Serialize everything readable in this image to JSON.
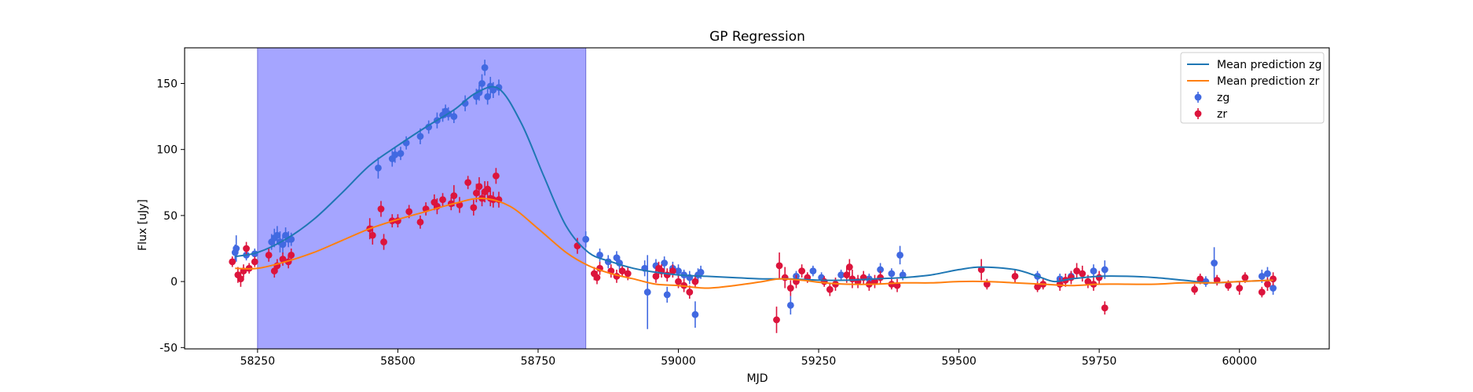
{
  "chart_data": {
    "type": "scatter",
    "title": "GP Regression",
    "xlabel": "MJD",
    "ylabel": "Flux [uJy]",
    "xlim": [
      58120,
      60160
    ],
    "ylim": [
      -51,
      177
    ],
    "xticks": [
      58250,
      58500,
      58750,
      59000,
      59250,
      59500,
      59750,
      60000
    ],
    "yticks": [
      -50,
      0,
      50,
      100,
      150
    ],
    "legend_position": "top-right",
    "highlight_span": {
      "x0": 58250,
      "x1": 58835,
      "color": "#a5a5ff"
    },
    "colors": {
      "zg_line": "#1f77b4",
      "zr_line": "#ff7f0e",
      "zg_points": "#4169e1",
      "zr_points": "#dc143c"
    },
    "legend": [
      {
        "label": "Mean prediction zg",
        "kind": "line",
        "color": "#1f77b4"
      },
      {
        "label": "Mean prediction zr",
        "kind": "line",
        "color": "#ff7f0e"
      },
      {
        "label": "zg",
        "kind": "errorbar",
        "color": "#4169e1"
      },
      {
        "label": "zr",
        "kind": "errorbar",
        "color": "#dc143c"
      }
    ],
    "lines": [
      {
        "name": "Mean prediction zg",
        "color": "#1f77b4",
        "x": [
          58210,
          58250,
          58300,
          58350,
          58400,
          58450,
          58500,
          58550,
          58600,
          58640,
          58680,
          58720,
          58760,
          58800,
          58840,
          58880,
          58920,
          58960,
          59000,
          59050,
          59100,
          59150,
          59200,
          59250,
          59300,
          59350,
          59400,
          59450,
          59500,
          59540,
          59600,
          59640,
          59670,
          59700,
          59750,
          59800,
          59850,
          59900,
          59950,
          60000,
          60060
        ],
        "y": [
          19,
          22,
          32,
          47,
          67,
          88,
          103,
          117,
          130,
          143,
          146,
          120,
          80,
          42,
          22,
          15,
          10,
          7,
          5,
          4,
          3,
          2,
          2,
          1,
          1,
          2,
          3,
          5,
          9,
          11,
          9,
          4,
          0,
          2,
          4,
          4,
          3,
          1,
          -1,
          0,
          1
        ]
      },
      {
        "name": "Mean prediction zr",
        "color": "#ff7f0e",
        "x": [
          58210,
          58250,
          58300,
          58350,
          58400,
          58450,
          58500,
          58550,
          58600,
          58650,
          58700,
          58750,
          58800,
          58840,
          58880,
          58920,
          58960,
          59000,
          59050,
          59100,
          59150,
          59180,
          59220,
          59260,
          59300,
          59350,
          59400,
          59450,
          59500,
          59550,
          59600,
          59650,
          59700,
          59750,
          59800,
          59850,
          59900,
          59950,
          60000,
          60060
        ],
        "y": [
          10,
          10,
          15,
          22,
          31,
          40,
          47,
          53,
          59,
          63,
          57,
          40,
          22,
          12,
          6,
          2,
          -2,
          -3,
          -5,
          -3,
          0,
          2,
          1,
          -1,
          -2,
          -2,
          -1,
          -1,
          0,
          0,
          -1,
          -2,
          -3,
          -2,
          -2,
          -2,
          -1,
          -1,
          0,
          1
        ]
      }
    ],
    "series": [
      {
        "name": "zg",
        "color": "#4169e1",
        "x": [
          58210,
          58212,
          58230,
          58245,
          58275,
          58280,
          58285,
          58290,
          58295,
          58300,
          58305,
          58310,
          58465,
          58490,
          58495,
          58505,
          58515,
          58540,
          58555,
          58570,
          58580,
          58585,
          58590,
          58600,
          58620,
          58640,
          58645,
          58650,
          58655,
          58660,
          58665,
          58670,
          58680,
          58835,
          58860,
          58875,
          58890,
          58895,
          58940,
          58945,
          58960,
          58975,
          58980,
          58990,
          59000,
          59010,
          59020,
          59030,
          59035,
          59040,
          59200,
          59210,
          59240,
          59255,
          59290,
          59340,
          59360,
          59380,
          59395,
          59400,
          59640,
          59680,
          59700,
          59740,
          59760,
          59940,
          59955,
          60040,
          60050,
          60060
        ],
        "y": [
          22,
          25,
          20,
          21,
          30,
          33,
          35,
          30,
          28,
          35,
          32,
          32,
          86,
          93,
          96,
          97,
          105,
          110,
          117,
          122,
          126,
          129,
          127,
          125,
          135,
          140,
          143,
          150,
          162,
          140,
          148,
          145,
          147,
          32,
          20,
          15,
          18,
          14,
          10,
          -8,
          12,
          14,
          -10,
          10,
          8,
          5,
          3,
          -25,
          5,
          7,
          -18,
          4,
          8,
          3,
          5,
          2,
          9,
          6,
          20,
          5,
          4,
          2,
          4,
          8,
          9,
          0,
          14,
          4,
          6,
          -5
        ],
        "err": [
          6,
          10,
          4,
          4,
          6,
          7,
          7,
          8,
          7,
          6,
          6,
          5,
          8,
          6,
          6,
          5,
          5,
          6,
          5,
          6,
          5,
          5,
          5,
          5,
          6,
          6,
          6,
          7,
          6,
          6,
          7,
          6,
          6,
          6,
          5,
          5,
          5,
          5,
          6,
          28,
          5,
          5,
          6,
          5,
          5,
          4,
          5,
          10,
          5,
          5,
          7,
          4,
          4,
          4,
          4,
          4,
          5,
          4,
          7,
          4,
          4,
          4,
          4,
          5,
          7,
          4,
          12,
          5,
          5,
          5
        ]
      },
      {
        "name": "zr",
        "color": "#dc143c",
        "x": [
          58205,
          58215,
          58220,
          58225,
          58230,
          58235,
          58245,
          58270,
          58280,
          58285,
          58295,
          58305,
          58310,
          58450,
          58455,
          58470,
          58475,
          58490,
          58500,
          58520,
          58540,
          58550,
          58565,
          58570,
          58580,
          58595,
          58600,
          58610,
          58625,
          58635,
          58640,
          58645,
          58650,
          58655,
          58660,
          58665,
          58670,
          58675,
          58680,
          58820,
          58850,
          58855,
          58860,
          58880,
          58890,
          58900,
          58910,
          58960,
          58965,
          58970,
          58980,
          58990,
          59000,
          59010,
          59020,
          59030,
          59175,
          59180,
          59190,
          59200,
          59210,
          59220,
          59230,
          59260,
          59270,
          59280,
          59300,
          59305,
          59310,
          59320,
          59330,
          59340,
          59350,
          59360,
          59380,
          59390,
          59540,
          59550,
          59600,
          59640,
          59650,
          59680,
          59690,
          59700,
          59710,
          59720,
          59730,
          59740,
          59750,
          59760,
          59920,
          59930,
          59960,
          59980,
          60000,
          60010,
          60040,
          60050,
          60060
        ],
        "y": [
          15,
          5,
          2,
          8,
          25,
          10,
          15,
          20,
          8,
          12,
          17,
          15,
          20,
          40,
          35,
          55,
          30,
          46,
          46,
          53,
          45,
          55,
          60,
          57,
          62,
          59,
          65,
          58,
          75,
          56,
          67,
          72,
          63,
          68,
          70,
          63,
          62,
          80,
          62,
          27,
          6,
          3,
          10,
          8,
          4,
          8,
          6,
          4,
          10,
          8,
          5,
          8,
          0,
          -3,
          -8,
          0,
          -29,
          12,
          3,
          -5,
          0,
          8,
          3,
          0,
          -6,
          -2,
          5,
          11,
          2,
          0,
          3,
          -2,
          0,
          3,
          -2,
          -3,
          9,
          -2,
          4,
          -4,
          -2,
          -2,
          1,
          3,
          8,
          6,
          0,
          -2,
          3,
          -20,
          -6,
          2,
          1,
          -3,
          -5,
          3,
          -8,
          -2,
          2
        ],
        "err": [
          4,
          6,
          6,
          5,
          5,
          4,
          4,
          5,
          5,
          5,
          5,
          5,
          5,
          8,
          7,
          6,
          6,
          5,
          5,
          5,
          5,
          5,
          6,
          6,
          5,
          5,
          8,
          6,
          5,
          6,
          7,
          7,
          6,
          8,
          6,
          6,
          6,
          6,
          6,
          6,
          5,
          5,
          5,
          5,
          5,
          4,
          5,
          5,
          5,
          5,
          5,
          5,
          5,
          5,
          5,
          5,
          10,
          10,
          8,
          6,
          5,
          5,
          4,
          4,
          5,
          5,
          6,
          6,
          7,
          5,
          5,
          5,
          5,
          5,
          4,
          5,
          8,
          4,
          5,
          4,
          4,
          5,
          5,
          5,
          6,
          6,
          5,
          5,
          5,
          5,
          4,
          4,
          4,
          4,
          5,
          4,
          4,
          5,
          5
        ]
      }
    ]
  }
}
